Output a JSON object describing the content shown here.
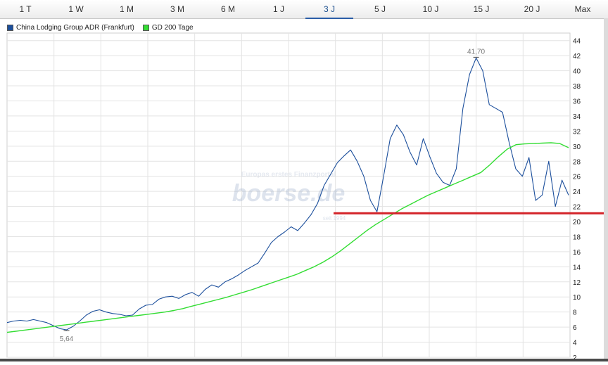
{
  "tabs": [
    {
      "label": "1 T"
    },
    {
      "label": "1 W"
    },
    {
      "label": "1 M"
    },
    {
      "label": "3 M"
    },
    {
      "label": "6 M"
    },
    {
      "label": "1 J"
    },
    {
      "label": "3 J"
    },
    {
      "label": "5 J"
    },
    {
      "label": "10 J"
    },
    {
      "label": "15 J"
    },
    {
      "label": "20 J"
    },
    {
      "label": "Max"
    }
  ],
  "active_tab": "3 J",
  "watermark": {
    "top": "Europas erstes Finanzportal",
    "main": "boerse.de",
    "bottom": "seit 1994"
  },
  "colors": {
    "price": "#1c4f9c",
    "sma": "#33dd33",
    "support_line": "#d42228",
    "grid": "#e3e3e3"
  },
  "chart_data": {
    "type": "line",
    "ylim": [
      2,
      45
    ],
    "yticks": [
      2,
      4,
      6,
      8,
      10,
      12,
      14,
      16,
      18,
      20,
      22,
      24,
      26,
      28,
      30,
      32,
      34,
      36,
      38,
      40,
      42,
      44
    ],
    "grid": true,
    "legend_position": "top-left",
    "series": [
      {
        "name": "China Lodging Group ADR (Frankfurt)",
        "color": "#1c4f9c",
        "values": [
          6.6,
          6.8,
          6.9,
          6.8,
          7.0,
          6.8,
          6.6,
          6.2,
          5.8,
          5.64,
          6.1,
          6.8,
          7.6,
          8.1,
          8.3,
          8.0,
          7.8,
          7.7,
          7.5,
          7.6,
          8.4,
          8.9,
          9.0,
          9.7,
          10.0,
          10.1,
          9.8,
          10.3,
          10.6,
          10.1,
          11.0,
          11.6,
          11.3,
          12.0,
          12.4,
          12.9,
          13.5,
          14.0,
          14.5,
          15.8,
          17.2,
          18.0,
          18.6,
          19.3,
          18.8,
          19.8,
          20.9,
          22.4,
          24.8,
          26.3,
          27.8,
          28.7,
          29.5,
          28.0,
          26.0,
          22.8,
          21.3,
          26.0,
          31.0,
          32.8,
          31.5,
          29.2,
          27.5,
          31.0,
          28.6,
          26.4,
          25.2,
          24.8,
          27.0,
          35.0,
          39.5,
          41.7,
          40.0,
          35.5,
          35.0,
          34.5,
          30.5,
          27.0,
          26.0,
          28.5,
          22.8,
          23.5,
          28.0,
          22.0,
          25.5,
          23.5
        ],
        "min_label": "5,64",
        "max_label": "41,70"
      },
      {
        "name": "GD 200 Tage",
        "color": "#33dd33",
        "values": [
          5.3,
          5.45,
          5.6,
          5.75,
          5.9,
          6.05,
          6.2,
          6.35,
          6.5,
          6.65,
          6.8,
          6.95,
          7.1,
          7.25,
          7.4,
          7.55,
          7.7,
          7.85,
          8.0,
          8.2,
          8.45,
          8.75,
          9.05,
          9.35,
          9.65,
          9.95,
          10.3,
          10.65,
          11.0,
          11.4,
          11.8,
          12.2,
          12.6,
          13.0,
          13.5,
          14.0,
          14.6,
          15.3,
          16.1,
          17.0,
          17.9,
          18.8,
          19.6,
          20.3,
          21.0,
          21.7,
          22.3,
          22.9,
          23.5,
          24.0,
          24.5,
          25.0,
          25.5,
          26.0,
          26.5,
          27.5,
          28.6,
          29.6,
          30.2,
          30.3,
          30.35,
          30.4,
          30.45,
          30.35,
          29.8
        ]
      }
    ],
    "reference_line": {
      "y": 21.1,
      "color": "#d42228"
    }
  }
}
